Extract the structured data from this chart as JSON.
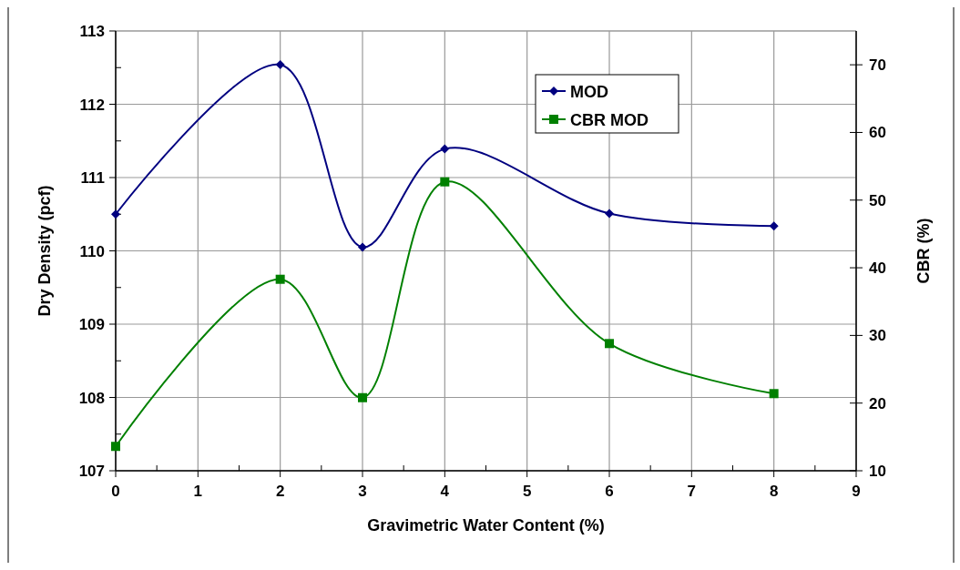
{
  "chart_data": {
    "type": "line",
    "xlabel": "Gravimetric Water Content (%)",
    "ylabel": "Dry Density (pcf)",
    "y2label": "CBR (%)",
    "x": [
      0,
      2,
      3,
      4,
      6,
      8
    ],
    "xlim": [
      0,
      9
    ],
    "xticks": [
      0,
      1,
      2,
      3,
      4,
      5,
      6,
      7,
      8,
      9
    ],
    "ylim": [
      107,
      113
    ],
    "yticks": [
      107,
      108,
      109,
      110,
      111,
      112,
      113
    ],
    "y2lim": [
      10,
      75
    ],
    "y2ticks": [
      10,
      20,
      30,
      40,
      50,
      60,
      70
    ],
    "grid": true,
    "legend": "top right",
    "series": [
      {
        "name": "MOD",
        "color": "#000080",
        "marker": "diamond",
        "values": [
          110.5,
          112.54,
          110.05,
          111.39,
          110.51,
          110.34
        ]
      },
      {
        "name": "CBR MOD",
        "color": "#008000",
        "marker": "square",
        "axis": "y2",
        "values": [
          13.6,
          38.3,
          20.8,
          52.7,
          28.8,
          21.4
        ]
      }
    ]
  }
}
